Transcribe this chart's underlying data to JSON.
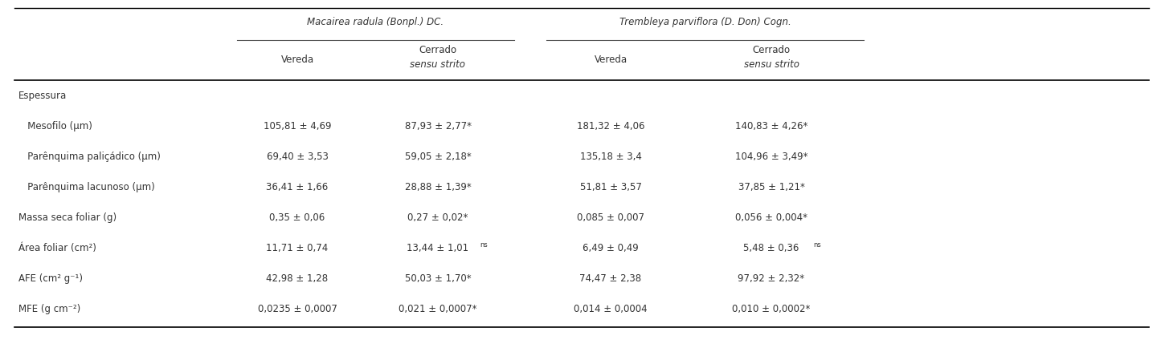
{
  "species1_italic": "Macairea radula",
  "species1_normal": " (Bonpl.) DC.",
  "species2_italic": "Trembleya parviflora",
  "species2_normal": " (D. Don) Cogn.",
  "row_labels": [
    "Espessura",
    "   Mesofilo (µm)",
    "   Parênquima paliçádico (µm)",
    "   Parênquima lacunoso (µm)",
    "Massa seca foliar (g)",
    "Área foliar (cm²)",
    "AFE (cm² g⁻¹)",
    "MFE (g cm⁻²)"
  ],
  "data": [
    [
      "",
      "",
      "",
      ""
    ],
    [
      "105,81 ± 4,69",
      "87,93 ± 2,77*",
      "181,32 ± 4,06",
      "140,83 ± 4,26*"
    ],
    [
      "69,40 ± 3,53",
      "59,05 ± 2,18*",
      "135,18 ± 3,4",
      "104,96 ± 3,49*"
    ],
    [
      "36,41 ± 1,66",
      "28,88 ± 1,39*",
      "51,81 ± 3,57",
      "37,85 ± 1,21*"
    ],
    [
      "0,35 ± 0,06",
      "0,27 ± 0,02*",
      "0,085 ± 0,007",
      "0,056 ± 0,004*"
    ],
    [
      "11,71 ± 0,74",
      "13,44 ± 1,01ns",
      "6,49 ± 0,49",
      "5,48 ± 0,36ns"
    ],
    [
      "42,98 ± 1,28",
      "50,03 ± 1,70*",
      "74,47 ± 2,38",
      "97,92 ± 2,32*"
    ],
    [
      "0,0235 ± 0,0007",
      "0,021 ± 0,0007*",
      "0,014 ± 0,0004",
      "0,010 ± 0,0002*"
    ]
  ],
  "bg_color": "#ffffff",
  "text_color": "#333333",
  "font_size": 8.5,
  "header_font_size": 8.5
}
